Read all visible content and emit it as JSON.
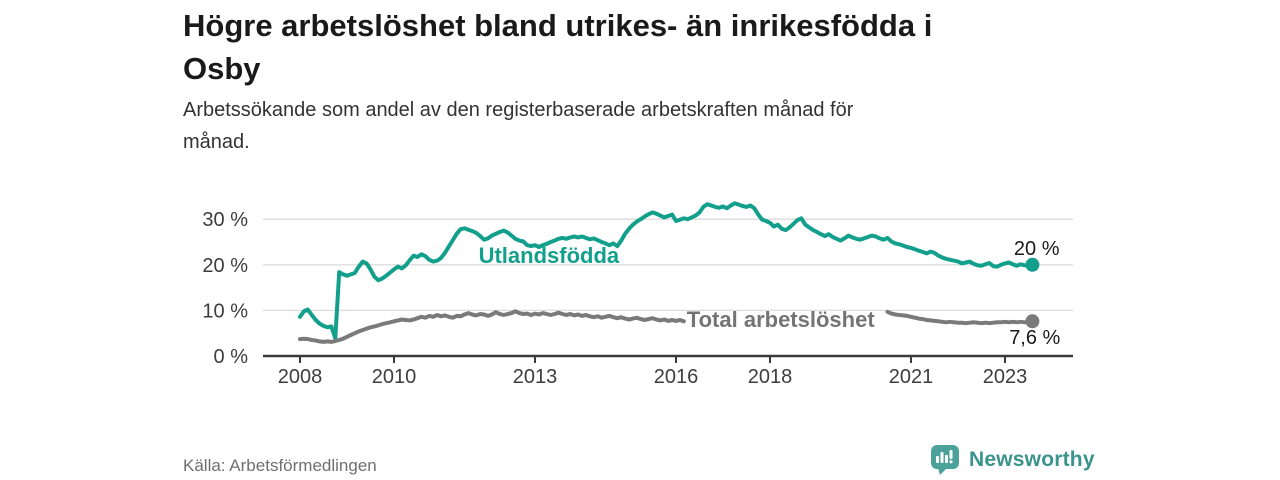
{
  "header": {
    "title_lines": [
      "Högre arbetslöshet bland utrikes- än inrikesfödda i",
      "Osby"
    ],
    "subtitle_lines": [
      "Arbetssökande som andel av den registerbaserade arbetskraften månad för",
      "månad."
    ]
  },
  "footer": {
    "source": "Källa: Arbetsförmedlingen",
    "brand": "Newsworthy"
  },
  "colors": {
    "teal": "#12a08d",
    "gray": "#7a7a7a",
    "gray_label": "#747474",
    "grid": "#dcdcdc",
    "axis": "#3a3a3a",
    "tick_text": "#3d3d3d",
    "value_text": "#1a1a1a",
    "brand": "#3b938d",
    "brand_icon": "#4ba29b"
  },
  "chart_data": {
    "type": "line",
    "title": "Högre arbetslöshet bland utrikes- än inrikesfödda i Osby",
    "subtitle": "Arbetssökande som andel av den registerbaserade arbetskraften månad för månad.",
    "grid": "horizontal",
    "legend_position": "inline-labels",
    "x_start": 2008.0,
    "x_step": 0.0833333,
    "x_ticks": [
      2008,
      2010,
      2013,
      2016,
      2018,
      2021,
      2023
    ],
    "y_ticks": [
      0,
      10,
      20,
      30
    ],
    "y_tick_suffix": " %",
    "ylim": [
      0,
      36
    ],
    "xlim": [
      2007.2,
      2024.5
    ],
    "series": [
      {
        "name": "Utlandsfödda",
        "color_key": "teal",
        "label_color_key": "teal",
        "end_label": "20 %",
        "label_pos": [
          2011.8,
          20.4
        ],
        "end_label_pos": [
          2023.19,
          22.1
        ],
        "values": [
          8.6,
          9.8,
          10.2,
          9.0,
          7.9,
          7.1,
          6.6,
          6.3,
          6.5,
          3.9,
          18.4,
          17.9,
          17.6,
          17.9,
          18.2,
          19.6,
          20.7,
          20.3,
          19.0,
          17.4,
          16.6,
          17.0,
          17.6,
          18.3,
          19.0,
          19.6,
          19.2,
          19.9,
          21.0,
          22.0,
          21.7,
          22.3,
          21.9,
          21.1,
          20.7,
          20.9,
          21.5,
          22.6,
          24.0,
          25.4,
          26.8,
          27.8,
          28.0,
          27.7,
          27.4,
          27.0,
          26.3,
          25.5,
          25.8,
          26.4,
          26.8,
          27.2,
          27.5,
          27.1,
          26.4,
          25.7,
          25.3,
          25.1,
          24.3,
          24.1,
          24.3,
          23.9,
          24.3,
          24.6,
          25.0,
          25.3,
          25.7,
          25.9,
          25.7,
          26.0,
          26.2,
          26.0,
          26.2,
          25.9,
          25.6,
          25.8,
          25.4,
          25.0,
          24.7,
          24.3,
          24.7,
          24.1,
          25.3,
          26.8,
          27.9,
          28.8,
          29.5,
          30.0,
          30.6,
          31.1,
          31.5,
          31.2,
          30.8,
          30.4,
          30.7,
          31.0,
          29.6,
          29.9,
          30.2,
          30.0,
          30.4,
          30.8,
          31.5,
          32.7,
          33.3,
          33.0,
          32.7,
          32.5,
          32.8,
          32.4,
          33.0,
          33.5,
          33.2,
          32.9,
          32.7,
          33.0,
          32.4,
          31.0,
          29.9,
          29.6,
          29.2,
          28.4,
          28.8,
          27.9,
          27.6,
          28.2,
          29.0,
          29.8,
          30.2,
          28.8,
          28.2,
          27.6,
          27.2,
          26.7,
          26.3,
          26.7,
          26.1,
          25.7,
          25.3,
          25.8,
          26.4,
          26.0,
          25.7,
          25.5,
          25.8,
          26.1,
          26.4,
          26.2,
          25.8,
          25.5,
          25.9,
          25.1,
          24.7,
          24.5,
          24.2,
          23.9,
          23.7,
          23.4,
          23.1,
          22.8,
          22.5,
          22.9,
          22.6,
          22.0,
          21.6,
          21.3,
          21.1,
          20.9,
          20.7,
          20.3,
          20.5,
          20.7,
          20.2,
          19.9,
          19.8,
          20.1,
          20.4,
          19.7,
          19.6,
          20.0,
          20.3,
          20.5,
          20.1,
          19.8,
          20.1,
          19.9,
          19.8,
          20.0
        ]
      },
      {
        "name": "Total arbetslöshet",
        "color_key": "gray",
        "label_color_key": "gray_label",
        "end_label": "7,6 %",
        "label_pos": [
          2016.23,
          6.4
        ],
        "end_label_pos": [
          2023.09,
          2.6
        ],
        "gap_years": [
          2016.2,
          2020.42
        ],
        "values": [
          3.7,
          3.8,
          3.7,
          3.5,
          3.4,
          3.2,
          3.1,
          3.2,
          3.1,
          3.3,
          3.5,
          3.8,
          4.2,
          4.6,
          5.0,
          5.4,
          5.7,
          6.0,
          6.3,
          6.5,
          6.7,
          7.0,
          7.2,
          7.4,
          7.6,
          7.8,
          8.0,
          7.9,
          7.8,
          8.0,
          8.3,
          8.6,
          8.4,
          8.8,
          8.6,
          9.0,
          8.7,
          8.9,
          8.6,
          8.4,
          8.8,
          8.7,
          9.1,
          9.4,
          9.1,
          8.9,
          9.2,
          9.1,
          8.8,
          9.1,
          9.6,
          9.2,
          9.0,
          9.2,
          9.4,
          9.8,
          9.4,
          9.2,
          9.3,
          9.0,
          9.3,
          9.1,
          9.4,
          9.2,
          9.0,
          9.2,
          9.5,
          9.2,
          9.0,
          9.2,
          8.9,
          9.1,
          8.8,
          9.0,
          8.7,
          8.5,
          8.7,
          8.4,
          8.6,
          8.8,
          8.5,
          8.3,
          8.5,
          8.2,
          8.0,
          8.2,
          8.4,
          8.1,
          7.9,
          8.1,
          8.3,
          8.0,
          7.8,
          8.0,
          7.7,
          7.9,
          7.7,
          7.9,
          7.6,
          7.8,
          7.5,
          7.7,
          7.9,
          7.6,
          7.4,
          7.6,
          7.8,
          7.5,
          7.7,
          7.5,
          7.8,
          7.6,
          7.4,
          7.6,
          7.8,
          7.5,
          7.7,
          7.9,
          7.6,
          7.8,
          7.6,
          7.8,
          7.5,
          7.7,
          7.9,
          7.6,
          7.4,
          7.6,
          7.8,
          7.5,
          7.7,
          7.9,
          7.7,
          7.5,
          7.7,
          7.9,
          7.6,
          7.8,
          8.0,
          7.7,
          7.9,
          8.1,
          8.3,
          8.5,
          8.7,
          8.9,
          9.2,
          9.8,
          9.9,
          9.6,
          9.7,
          9.3,
          9.1,
          9.0,
          8.9,
          8.8,
          8.6,
          8.4,
          8.2,
          8.1,
          7.9,
          7.8,
          7.7,
          7.6,
          7.5,
          7.4,
          7.5,
          7.4,
          7.3,
          7.3,
          7.2,
          7.3,
          7.4,
          7.3,
          7.2,
          7.3,
          7.2,
          7.3,
          7.4,
          7.4,
          7.5,
          7.4,
          7.5,
          7.4,
          7.5,
          7.4,
          7.5,
          7.6
        ]
      }
    ]
  }
}
